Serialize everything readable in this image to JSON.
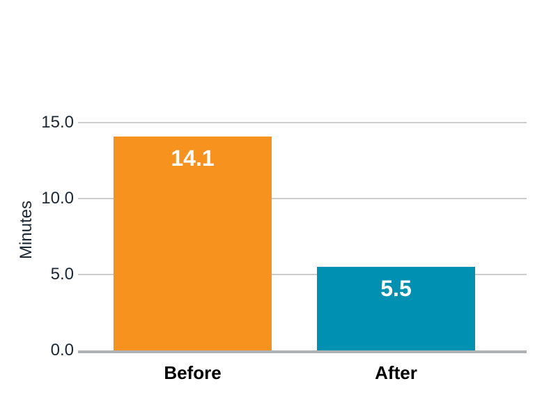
{
  "chart_data": {
    "type": "bar",
    "ylabel": "Minutes",
    "categories": [
      "Before",
      "After"
    ],
    "values": [
      14.1,
      5.5
    ],
    "value_labels": [
      "14.1",
      "5.5"
    ],
    "bar_colors": [
      "#F7921E",
      "#0090B2"
    ],
    "ylim": [
      0,
      15
    ],
    "yticks": [
      {
        "value": 0,
        "label": "0.0"
      },
      {
        "value": 5,
        "label": "5.0"
      },
      {
        "value": 10,
        "label": "10.0"
      },
      {
        "value": 15,
        "label": "15.0"
      }
    ],
    "grid": true,
    "legend": false,
    "background": "#FFFFFF",
    "colors": {
      "gridline": "#CDCDCD",
      "axis_line": "#B0B1B3",
      "tick_label": "#1D2633",
      "x_label": "#000000",
      "value_label": "#FFFFFF"
    }
  }
}
